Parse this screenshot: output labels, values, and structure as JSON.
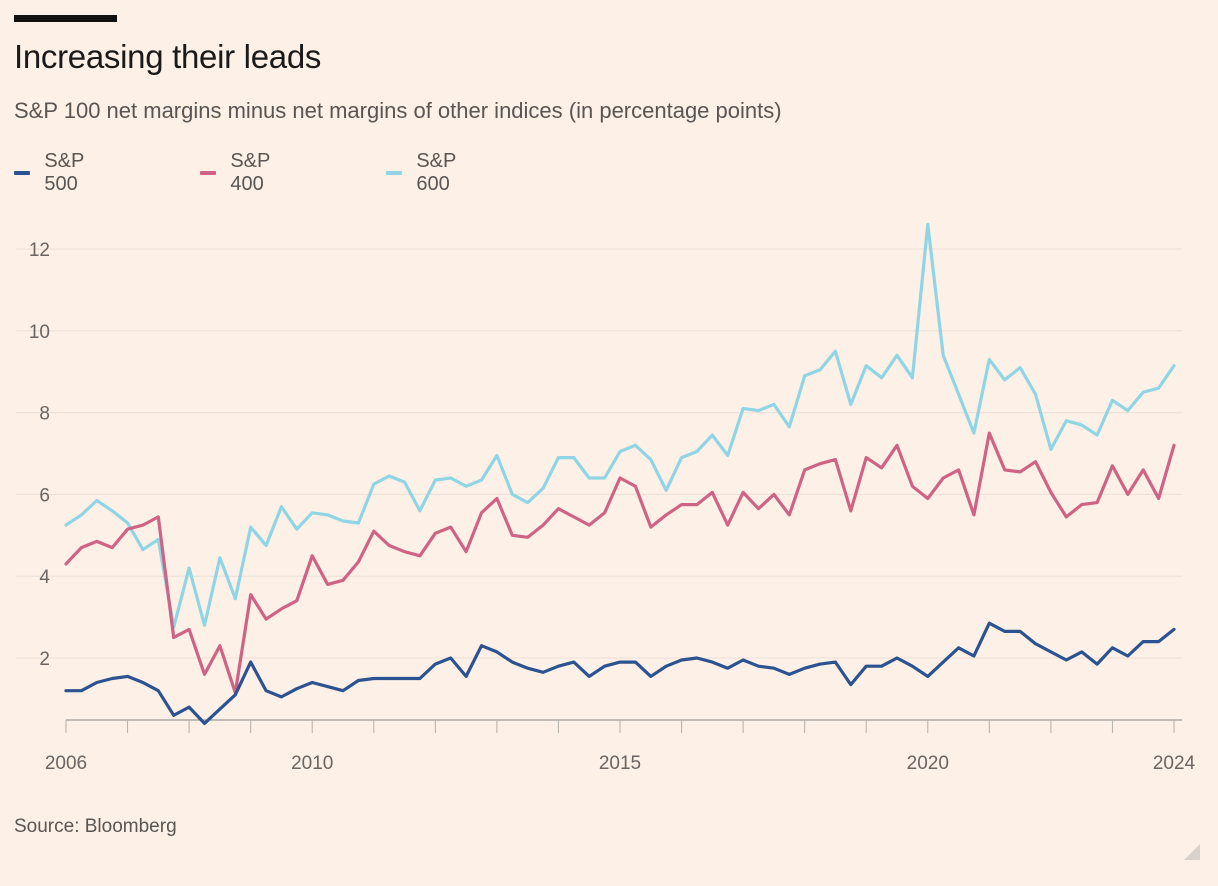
{
  "title": "Increasing their leads",
  "subtitle": "S&P 100 net margins minus net margins of other indices (in percentage points)",
  "source": "Source: Bloomberg",
  "legend": [
    {
      "name": "S&P 500",
      "color": "#2c5391"
    },
    {
      "name": "S&P 400",
      "color": "#cf6384"
    },
    {
      "name": "S&P 600",
      "color": "#8fd5e5"
    }
  ],
  "chart_data": {
    "type": "line",
    "title": "Increasing their leads",
    "subtitle": "S&P 100 net margins minus net margins of other indices (in percentage points)",
    "xlabel": "",
    "ylabel": "",
    "xlim": [
      2006,
      2024
    ],
    "ylim": [
      0.5,
      13
    ],
    "yticks": [
      2,
      4,
      6,
      8,
      10,
      12
    ],
    "xticks": [
      2006,
      2010,
      2015,
      2020,
      2024
    ],
    "grid": true,
    "legend_position": "top-left",
    "x": [
      2006.0,
      2006.25,
      2006.5,
      2006.75,
      2007.0,
      2007.25,
      2007.5,
      2007.75,
      2008.0,
      2008.25,
      2008.5,
      2008.75,
      2009.0,
      2009.25,
      2009.5,
      2009.75,
      2010.0,
      2010.25,
      2010.5,
      2010.75,
      2011.0,
      2011.25,
      2011.5,
      2011.75,
      2012.0,
      2012.25,
      2012.5,
      2012.75,
      2013.0,
      2013.25,
      2013.5,
      2013.75,
      2014.0,
      2014.25,
      2014.5,
      2014.75,
      2015.0,
      2015.25,
      2015.5,
      2015.75,
      2016.0,
      2016.25,
      2016.5,
      2016.75,
      2017.0,
      2017.25,
      2017.5,
      2017.75,
      2018.0,
      2018.25,
      2018.5,
      2018.75,
      2019.0,
      2019.25,
      2019.5,
      2019.75,
      2020.0,
      2020.25,
      2020.5,
      2020.75,
      2021.0,
      2021.25,
      2021.5,
      2021.75,
      2022.0,
      2022.25,
      2022.5,
      2022.75,
      2023.0,
      2023.25,
      2023.5,
      2023.75,
      2024.0
    ],
    "series": [
      {
        "name": "S&P 500",
        "color": "#2c5391",
        "values": [
          1.2,
          1.2,
          1.4,
          1.5,
          1.55,
          1.4,
          1.2,
          0.6,
          0.8,
          0.4,
          0.75,
          1.1,
          1.9,
          1.2,
          1.05,
          1.25,
          1.4,
          1.3,
          1.2,
          1.45,
          1.5,
          1.5,
          1.5,
          1.5,
          1.85,
          2.0,
          1.55,
          2.3,
          2.15,
          1.9,
          1.75,
          1.65,
          1.8,
          1.9,
          1.55,
          1.8,
          1.9,
          1.9,
          1.55,
          1.8,
          1.95,
          2.0,
          1.9,
          1.75,
          1.95,
          1.8,
          1.75,
          1.6,
          1.75,
          1.85,
          1.9,
          1.35,
          1.8,
          1.8,
          2.0,
          1.8,
          1.55,
          1.9,
          2.25,
          2.05,
          2.85,
          2.65,
          2.65,
          2.35,
          2.15,
          1.95,
          2.15,
          1.85,
          2.25,
          2.05,
          2.4,
          2.4,
          2.7
        ]
      },
      {
        "name": "S&P 400",
        "color": "#cf6384",
        "values": [
          4.3,
          4.7,
          4.85,
          4.7,
          5.15,
          5.25,
          5.45,
          2.5,
          2.7,
          1.6,
          2.3,
          1.15,
          3.55,
          2.95,
          3.2,
          3.4,
          4.5,
          3.8,
          3.9,
          4.35,
          5.1,
          4.75,
          4.6,
          4.5,
          5.05,
          5.2,
          4.6,
          5.55,
          5.9,
          5.0,
          4.95,
          5.25,
          5.65,
          5.45,
          5.25,
          5.55,
          6.4,
          6.2,
          5.2,
          5.5,
          5.75,
          5.75,
          6.05,
          5.25,
          6.05,
          5.65,
          6.0,
          5.5,
          6.6,
          6.75,
          6.85,
          5.6,
          6.9,
          6.65,
          7.2,
          6.2,
          5.9,
          6.4,
          6.6,
          5.5,
          7.5,
          6.6,
          6.55,
          6.8,
          6.05,
          5.45,
          5.75,
          5.8,
          6.7,
          6.0,
          6.6,
          5.9,
          7.2
        ]
      },
      {
        "name": "S&P 600",
        "color": "#8fd5e5",
        "values": [
          5.25,
          5.5,
          5.85,
          5.6,
          5.3,
          4.65,
          4.9,
          2.75,
          4.2,
          2.8,
          4.45,
          3.45,
          5.2,
          4.75,
          5.7,
          5.15,
          5.55,
          5.5,
          5.35,
          5.3,
          6.25,
          6.45,
          6.3,
          5.6,
          6.35,
          6.4,
          6.2,
          6.35,
          6.95,
          6.0,
          5.8,
          6.15,
          6.9,
          6.9,
          6.4,
          6.4,
          7.05,
          7.2,
          6.85,
          6.1,
          6.9,
          7.05,
          7.45,
          6.95,
          8.1,
          8.05,
          8.2,
          7.65,
          8.9,
          9.05,
          9.5,
          8.2,
          9.15,
          8.85,
          9.4,
          8.85,
          12.6,
          9.4,
          8.45,
          7.5,
          9.3,
          8.8,
          9.1,
          8.45,
          7.1,
          7.8,
          7.7,
          7.45,
          8.3,
          8.05,
          8.5,
          8.6,
          9.15
        ]
      }
    ]
  }
}
